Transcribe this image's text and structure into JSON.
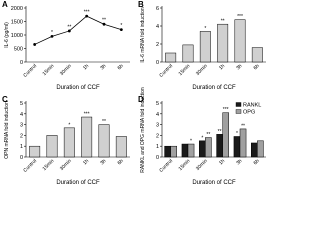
{
  "chart_data": [
    {
      "type": "line",
      "panel_label": "A",
      "y_label": "IL-6 (pg/ml)",
      "x_label": "Duration of CCF",
      "categories": [
        "Control",
        "15min",
        "30min",
        "1h",
        "3h",
        "6h"
      ],
      "values": [
        650,
        950,
        1150,
        1700,
        1400,
        1200
      ],
      "color": "#000000",
      "annotations": [
        null,
        "*",
        "**",
        "***",
        "**",
        "*"
      ],
      "ylim": [
        0,
        2000
      ],
      "yticks": [
        0,
        500,
        1000,
        1500,
        2000
      ]
    },
    {
      "type": "bar",
      "panel_label": "B",
      "y_label": "IL-6 mRNA fold induction",
      "x_label": "Duration of CCF",
      "categories": [
        "Control",
        "15min",
        "30min",
        "1h",
        "3h",
        "6h"
      ],
      "values": [
        1.0,
        1.9,
        3.4,
        4.2,
        4.7,
        1.6
      ],
      "color": "#d0d0d0",
      "annotations": [
        null,
        null,
        "*",
        "**",
        "***",
        null
      ],
      "ylim": [
        0,
        6
      ],
      "yticks": [
        0,
        2,
        4,
        6
      ]
    },
    {
      "type": "bar",
      "panel_label": "C",
      "y_label": "OPN mRNA fold induction",
      "x_label": "Duration of CCF",
      "categories": [
        "Control",
        "15min",
        "30min",
        "1h",
        "3h",
        "6h"
      ],
      "values": [
        1.0,
        2.0,
        2.7,
        3.7,
        3.0,
        1.9
      ],
      "color": "#d0d0d0",
      "annotations": [
        null,
        null,
        "*",
        "***",
        "**",
        null
      ],
      "ylim": [
        0,
        5
      ],
      "yticks": [
        0,
        1,
        2,
        3,
        4,
        5
      ]
    },
    {
      "type": "grouped_bar",
      "panel_label": "D",
      "y_label": "RANKL and OPG mRNA fold induction",
      "x_label": "Duration of CCF",
      "categories": [
        "Control",
        "15min",
        "30min",
        "1h",
        "3h",
        "6h"
      ],
      "series": [
        {
          "name": "RANKL",
          "color": "#1a1a1a",
          "values": [
            1.0,
            1.2,
            1.5,
            2.1,
            1.9,
            1.3
          ],
          "annotations": [
            null,
            null,
            "*",
            "**",
            "*",
            null
          ]
        },
        {
          "name": "OPG",
          "color": "#a0a0a0",
          "values": [
            1.0,
            1.2,
            1.8,
            4.1,
            2.6,
            1.5
          ],
          "annotations": [
            null,
            "*",
            "**",
            "***",
            "**",
            null
          ]
        }
      ],
      "ylim": [
        0,
        5
      ],
      "yticks": [
        0,
        1,
        2,
        3,
        4,
        5
      ],
      "legend": "upper right"
    }
  ]
}
